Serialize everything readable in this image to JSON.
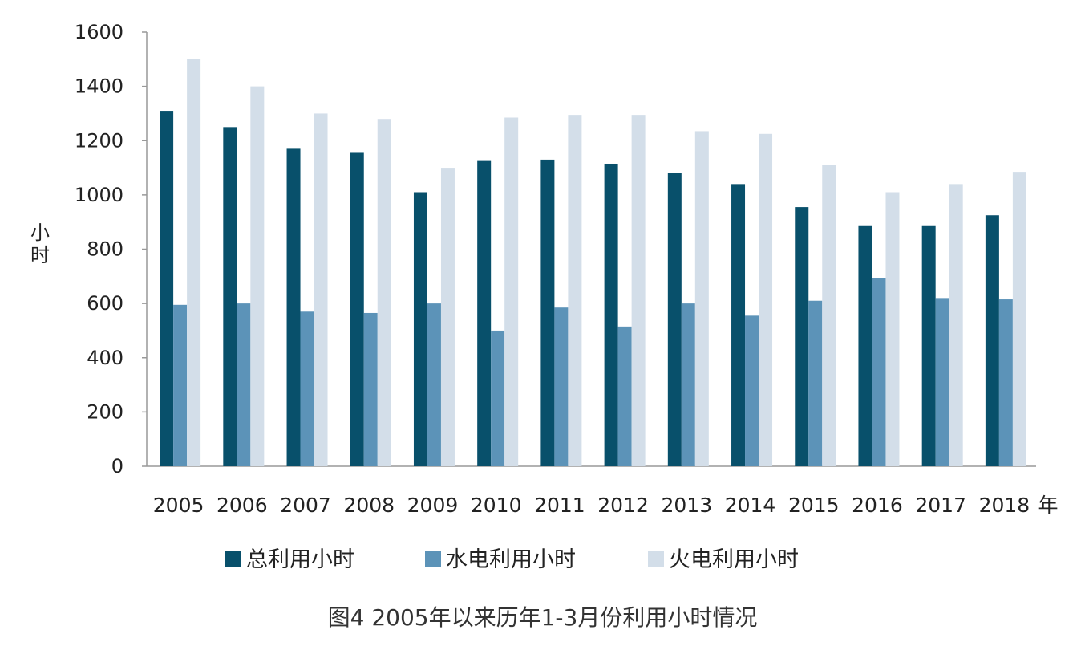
{
  "chart_data": {
    "type": "bar",
    "categories": [
      "2005",
      "2006",
      "2007",
      "2008",
      "2009",
      "2010",
      "2011",
      "2012",
      "2013",
      "2014",
      "2015",
      "2016",
      "2017",
      "2018"
    ],
    "series": [
      {
        "name": "总利用小时",
        "color": "#08506B",
        "values": [
          1310,
          1250,
          1170,
          1155,
          1010,
          1125,
          1130,
          1115,
          1080,
          1040,
          955,
          885,
          885,
          925
        ]
      },
      {
        "name": "水电利用小时",
        "color": "#5C93B8",
        "values": [
          595,
          600,
          570,
          565,
          600,
          500,
          585,
          515,
          600,
          555,
          610,
          695,
          620,
          615
        ]
      },
      {
        "name": "火电利用小时",
        "color": "#D3DEE9",
        "values": [
          1500,
          1400,
          1300,
          1280,
          1100,
          1285,
          1295,
          1295,
          1235,
          1225,
          1110,
          1010,
          1040,
          1085
        ]
      }
    ],
    "ylabel": "小时",
    "xlabel": "年",
    "ylim": [
      0,
      1600
    ],
    "yticks": [
      0,
      200,
      400,
      600,
      800,
      1000,
      1200,
      1400,
      1600
    ],
    "grid": false,
    "legend_position": "bottom"
  },
  "caption": "图4 2005年以来历年1-3月份利用小时情况"
}
